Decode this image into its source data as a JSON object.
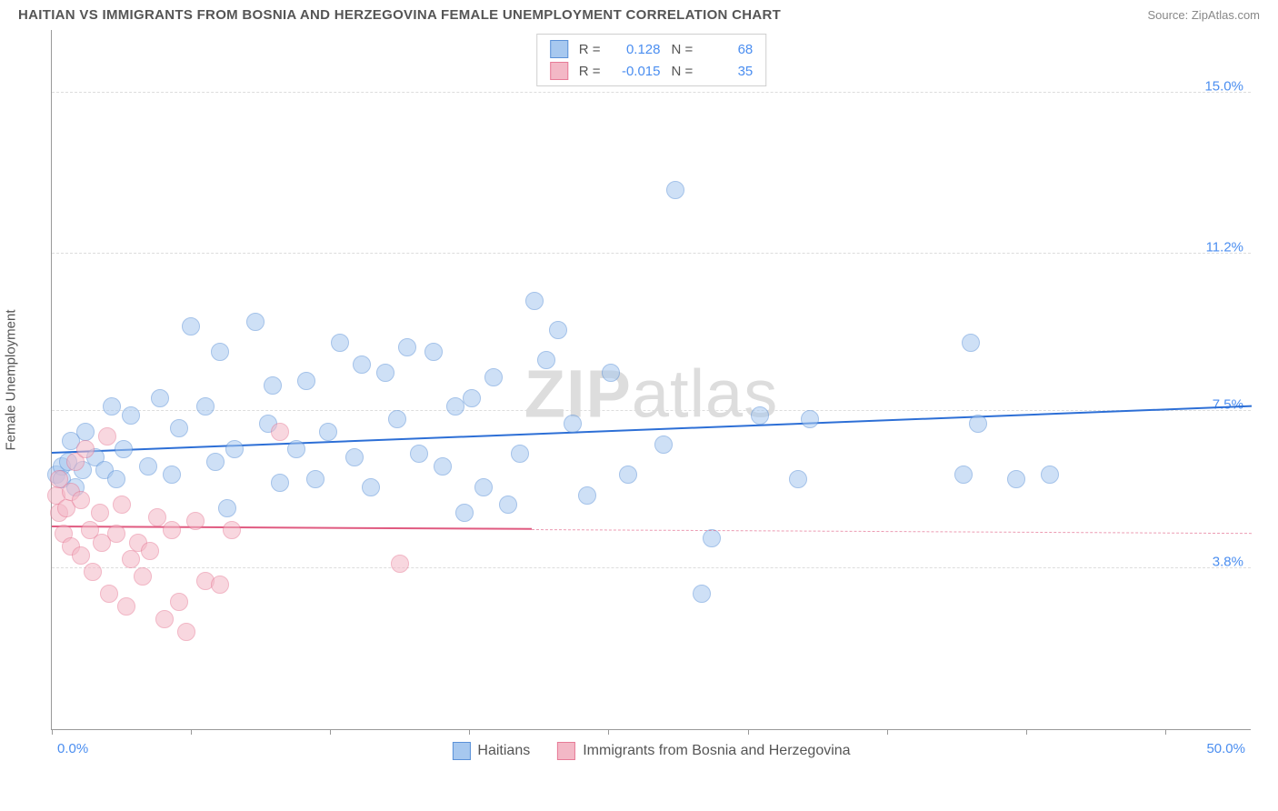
{
  "title": "HAITIAN VS IMMIGRANTS FROM BOSNIA AND HERZEGOVINA FEMALE UNEMPLOYMENT CORRELATION CHART",
  "source": "Source: ZipAtlas.com",
  "ylabel": "Female Unemployment",
  "watermark_a": "ZIP",
  "watermark_b": "atlas",
  "chart": {
    "type": "scatter",
    "background_color": "#ffffff",
    "grid_color": "#dddddd",
    "axis_color": "#999999",
    "xlim": [
      0,
      50
    ],
    "ylim": [
      0,
      16.5
    ],
    "x_ticks": [
      0,
      5.8,
      11.6,
      17.4,
      23.2,
      29.0,
      34.8,
      40.6,
      46.4
    ],
    "x_tick_label_left": "0.0%",
    "x_tick_label_right": "50.0%",
    "y_gridlines": [
      {
        "value": 15.0,
        "label": "15.0%"
      },
      {
        "value": 11.2,
        "label": "11.2%"
      },
      {
        "value": 7.5,
        "label": "7.5%"
      },
      {
        "value": 3.8,
        "label": "3.8%"
      }
    ],
    "label_fontsize": 15,
    "marker_radius": 10,
    "marker_opacity": 0.55,
    "marker_border_width": 1
  },
  "series": [
    {
      "name": "Haitians",
      "fill_color": "#a7c8ef",
      "border_color": "#5b91d8",
      "line_color": "#2d6fd6",
      "r_value": "0.128",
      "n_value": "68",
      "trend": {
        "x0": 0,
        "y0": 6.5,
        "x1": 50,
        "y1": 7.6,
        "width": 2.2,
        "solid_extent": 1.0
      },
      "points": [
        [
          0.2,
          6.0
        ],
        [
          0.4,
          6.2
        ],
        [
          0.4,
          5.9
        ],
        [
          0.7,
          6.3
        ],
        [
          0.8,
          6.8
        ],
        [
          1.0,
          5.7
        ],
        [
          1.3,
          6.1
        ],
        [
          1.4,
          7.0
        ],
        [
          1.8,
          6.4
        ],
        [
          2.2,
          6.1
        ],
        [
          2.5,
          7.6
        ],
        [
          2.7,
          5.9
        ],
        [
          3.0,
          6.6
        ],
        [
          3.3,
          7.4
        ],
        [
          4.0,
          6.2
        ],
        [
          4.5,
          7.8
        ],
        [
          5.0,
          6.0
        ],
        [
          5.3,
          7.1
        ],
        [
          5.8,
          9.5
        ],
        [
          6.4,
          7.6
        ],
        [
          6.8,
          6.3
        ],
        [
          7.0,
          8.9
        ],
        [
          7.3,
          5.2
        ],
        [
          7.6,
          6.6
        ],
        [
          8.5,
          9.6
        ],
        [
          9.0,
          7.2
        ],
        [
          9.2,
          8.1
        ],
        [
          9.5,
          5.8
        ],
        [
          10.2,
          6.6
        ],
        [
          10.6,
          8.2
        ],
        [
          11.0,
          5.9
        ],
        [
          11.5,
          7.0
        ],
        [
          12.0,
          9.1
        ],
        [
          12.6,
          6.4
        ],
        [
          12.9,
          8.6
        ],
        [
          13.3,
          5.7
        ],
        [
          13.9,
          8.4
        ],
        [
          14.4,
          7.3
        ],
        [
          14.8,
          9.0
        ],
        [
          15.3,
          6.5
        ],
        [
          15.9,
          8.9
        ],
        [
          16.3,
          6.2
        ],
        [
          16.8,
          7.6
        ],
        [
          17.2,
          5.1
        ],
        [
          17.5,
          7.8
        ],
        [
          18.0,
          5.7
        ],
        [
          18.4,
          8.3
        ],
        [
          19.0,
          5.3
        ],
        [
          19.5,
          6.5
        ],
        [
          20.1,
          10.1
        ],
        [
          20.6,
          8.7
        ],
        [
          21.1,
          9.4
        ],
        [
          21.7,
          7.2
        ],
        [
          22.3,
          5.5
        ],
        [
          23.3,
          8.4
        ],
        [
          24.0,
          6.0
        ],
        [
          25.5,
          6.7
        ],
        [
          26.0,
          12.7
        ],
        [
          27.1,
          3.2
        ],
        [
          27.5,
          4.5
        ],
        [
          29.5,
          7.4
        ],
        [
          31.1,
          5.9
        ],
        [
          31.6,
          7.3
        ],
        [
          38.3,
          9.1
        ],
        [
          38.6,
          7.2
        ],
        [
          40.2,
          5.9
        ],
        [
          41.6,
          6.0
        ],
        [
          38.0,
          6.0
        ]
      ]
    },
    {
      "name": "Immigrants from Bosnia and Herzegovina",
      "fill_color": "#f3b8c6",
      "border_color": "#e77b97",
      "line_color": "#e05a80",
      "r_value": "-0.015",
      "n_value": "35",
      "trend": {
        "x0": 0,
        "y0": 4.75,
        "x1": 50,
        "y1": 4.6,
        "width": 2,
        "solid_extent": 0.4
      },
      "points": [
        [
          0.2,
          5.5
        ],
        [
          0.3,
          5.1
        ],
        [
          0.3,
          5.9
        ],
        [
          0.5,
          4.6
        ],
        [
          0.6,
          5.2
        ],
        [
          0.8,
          4.3
        ],
        [
          0.8,
          5.6
        ],
        [
          1.0,
          6.3
        ],
        [
          1.2,
          4.1
        ],
        [
          1.2,
          5.4
        ],
        [
          1.4,
          6.6
        ],
        [
          1.6,
          4.7
        ],
        [
          1.7,
          3.7
        ],
        [
          2.0,
          5.1
        ],
        [
          2.1,
          4.4
        ],
        [
          2.3,
          6.9
        ],
        [
          2.4,
          3.2
        ],
        [
          2.7,
          4.6
        ],
        [
          2.9,
          5.3
        ],
        [
          3.1,
          2.9
        ],
        [
          3.3,
          4.0
        ],
        [
          3.6,
          4.4
        ],
        [
          3.8,
          3.6
        ],
        [
          4.1,
          4.2
        ],
        [
          4.4,
          5.0
        ],
        [
          4.7,
          2.6
        ],
        [
          5.0,
          4.7
        ],
        [
          5.3,
          3.0
        ],
        [
          5.6,
          2.3
        ],
        [
          6.0,
          4.9
        ],
        [
          6.4,
          3.5
        ],
        [
          7.0,
          3.4
        ],
        [
          7.5,
          4.7
        ],
        [
          9.5,
          7.0
        ],
        [
          14.5,
          3.9
        ]
      ]
    }
  ],
  "legend_top": {
    "r_label": "R =",
    "n_label": "N ="
  }
}
